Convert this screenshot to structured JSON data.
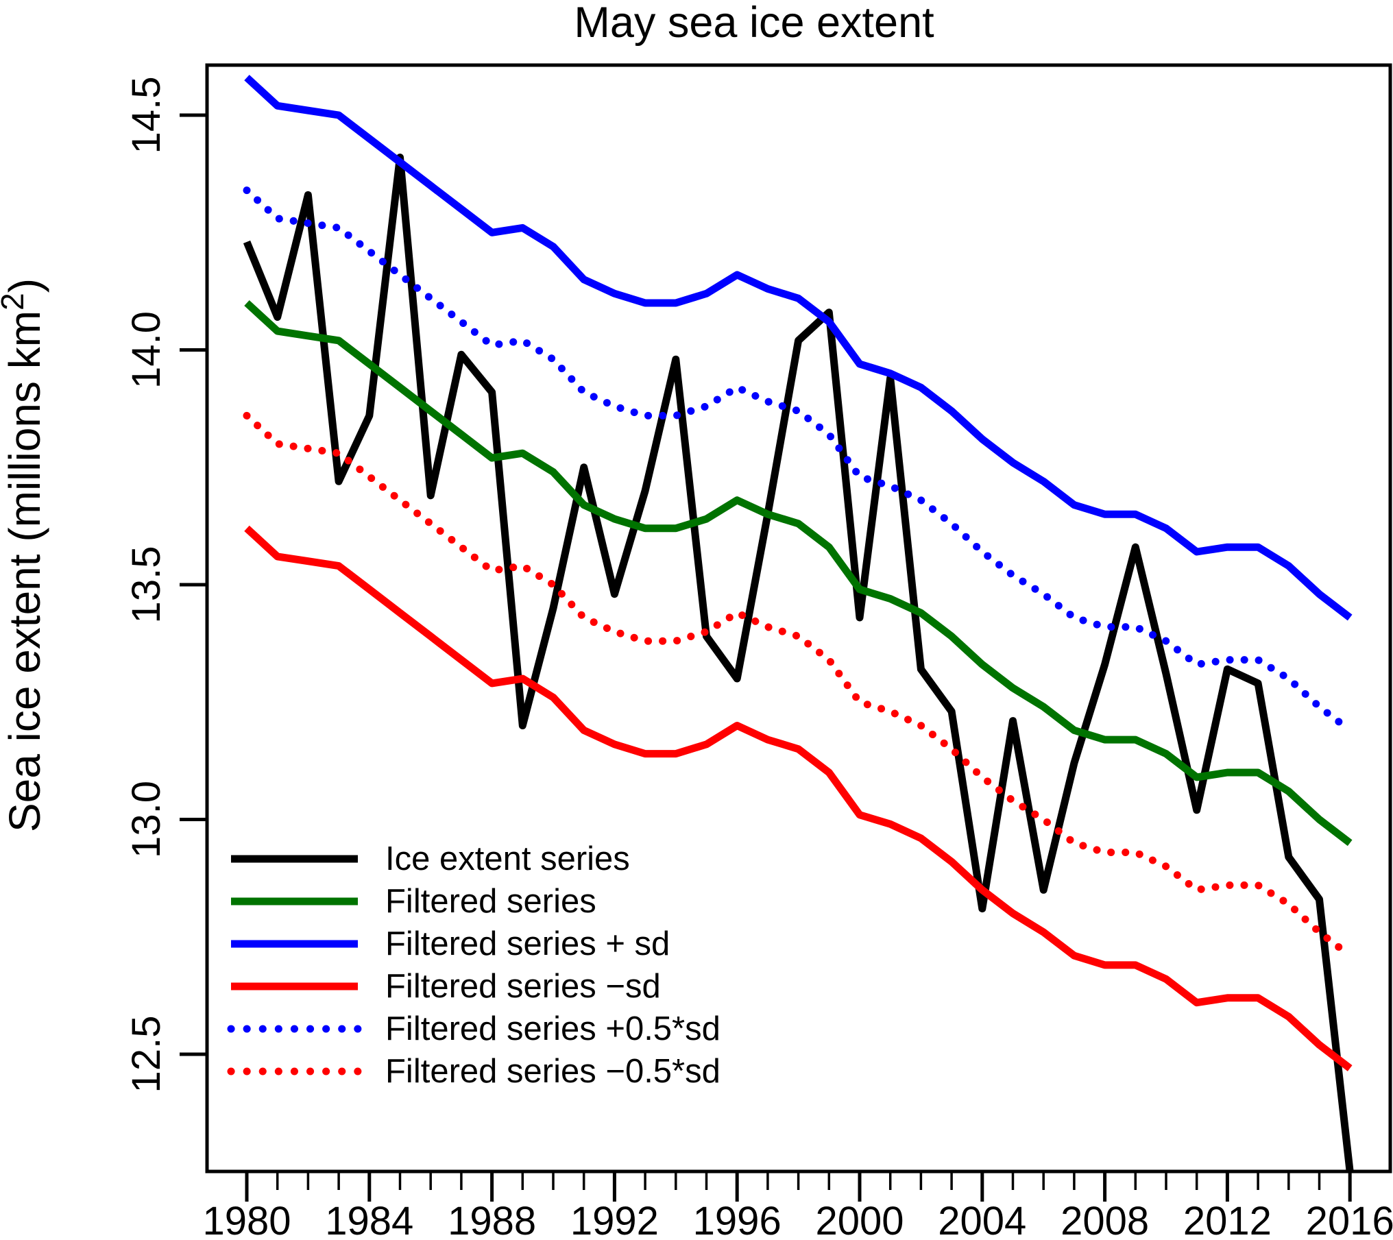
{
  "title": "May sea ice extent",
  "y_label": {
    "text": "Sea ice extent (millions km",
    "sup": "2",
    "suffix": ")"
  },
  "axes": {
    "y_ticks": [
      14.5,
      14.0,
      13.5,
      13.0,
      12.5
    ],
    "x_major_ticks": [
      1980,
      1984,
      1988,
      1992,
      1996,
      2000,
      2004,
      2008,
      2012,
      2016
    ],
    "x_minor_tick_interval": 1
  },
  "legend": [
    {
      "label": "Ice extent series",
      "series": "ice-extent"
    },
    {
      "label": "Filtered series",
      "series": "filtered"
    },
    {
      "label": "Filtered series + sd",
      "series": "filtered-plus-sd"
    },
    {
      "label": "Filtered series −sd",
      "series": "filtered-minus-sd"
    },
    {
      "label": "Filtered series +0.5*sd",
      "series": "filtered-plus-half-sd"
    },
    {
      "label": "Filtered series −0.5*sd",
      "series": "filtered-minus-half-sd"
    }
  ],
  "chart_data": {
    "type": "line",
    "title": "May sea ice extent",
    "xlabel": "",
    "ylabel": "Sea ice extent (millions km2)",
    "xlim": [
      1978.7,
      2017.3
    ],
    "ylim": [
      12.25,
      14.61
    ],
    "grid": false,
    "legend_position": "lower-left-inside",
    "sd": 0.48,
    "x": [
      1980,
      1981,
      1982,
      1983,
      1984,
      1985,
      1986,
      1987,
      1988,
      1989,
      1990,
      1991,
      1992,
      1993,
      1994,
      1995,
      1996,
      1997,
      1998,
      1999,
      2000,
      2001,
      2002,
      2003,
      2004,
      2005,
      2006,
      2007,
      2008,
      2009,
      2010,
      2011,
      2012,
      2013,
      2014,
      2015,
      2016
    ],
    "series": [
      {
        "name": "Ice extent series",
        "slug": "ice-extent",
        "color": "#000000",
        "style": "solid",
        "note": "2016 value clipped at plot bottom",
        "values": [
          14.23,
          14.07,
          14.33,
          13.72,
          13.86,
          14.41,
          13.69,
          13.99,
          13.91,
          13.2,
          13.45,
          13.75,
          13.48,
          13.7,
          13.98,
          13.39,
          13.3,
          13.65,
          14.02,
          14.08,
          13.43,
          13.94,
          13.32,
          13.23,
          12.81,
          13.21,
          12.85,
          13.12,
          13.33,
          13.58,
          13.31,
          13.02,
          13.32,
          13.29,
          12.92,
          12.83,
          12.25
        ]
      },
      {
        "name": "Filtered series",
        "slug": "filtered",
        "color": "#007300",
        "style": "solid",
        "values": [
          14.1,
          14.04,
          14.03,
          14.02,
          13.97,
          13.92,
          13.87,
          13.82,
          13.77,
          13.78,
          13.74,
          13.67,
          13.64,
          13.62,
          13.62,
          13.64,
          13.68,
          13.65,
          13.63,
          13.58,
          13.49,
          13.47,
          13.44,
          13.39,
          13.33,
          13.28,
          13.24,
          13.19,
          13.17,
          13.17,
          13.14,
          13.09,
          13.1,
          13.1,
          13.06,
          13.0,
          12.95
        ]
      },
      {
        "name": "Filtered series + sd",
        "slug": "filtered-plus-sd",
        "color": "#0000ff",
        "style": "solid",
        "values": [
          14.58,
          14.52,
          14.51,
          14.5,
          14.45,
          14.4,
          14.35,
          14.3,
          14.25,
          14.26,
          14.22,
          14.15,
          14.12,
          14.1,
          14.1,
          14.12,
          14.16,
          14.13,
          14.11,
          14.06,
          13.97,
          13.95,
          13.92,
          13.87,
          13.81,
          13.76,
          13.72,
          13.67,
          13.65,
          13.65,
          13.62,
          13.57,
          13.58,
          13.58,
          13.54,
          13.48,
          13.43
        ]
      },
      {
        "name": "Filtered series −sd",
        "slug": "filtered-minus-sd",
        "color": "#ff0000",
        "style": "solid",
        "values": [
          13.62,
          13.56,
          13.55,
          13.54,
          13.49,
          13.44,
          13.39,
          13.34,
          13.29,
          13.3,
          13.26,
          13.19,
          13.16,
          13.14,
          13.14,
          13.16,
          13.2,
          13.17,
          13.15,
          13.1,
          13.01,
          12.99,
          12.96,
          12.91,
          12.85,
          12.8,
          12.76,
          12.71,
          12.69,
          12.69,
          12.66,
          12.61,
          12.62,
          12.62,
          12.58,
          12.52,
          12.47
        ]
      },
      {
        "name": "Filtered series +0.5*sd",
        "slug": "filtered-plus-half-sd",
        "color": "#0000ff",
        "style": "dotted",
        "values": [
          14.34,
          14.28,
          14.27,
          14.26,
          14.21,
          14.16,
          14.11,
          14.06,
          14.01,
          14.02,
          13.98,
          13.91,
          13.88,
          13.86,
          13.86,
          13.88,
          13.92,
          13.89,
          13.87,
          13.82,
          13.73,
          13.71,
          13.68,
          13.63,
          13.57,
          13.52,
          13.48,
          13.43,
          13.41,
          13.41,
          13.38,
          13.33,
          13.34,
          13.34,
          13.3,
          13.24,
          13.19
        ]
      },
      {
        "name": "Filtered series −0.5*sd",
        "slug": "filtered-minus-half-sd",
        "color": "#ff0000",
        "style": "dotted",
        "values": [
          13.86,
          13.8,
          13.79,
          13.78,
          13.73,
          13.68,
          13.63,
          13.58,
          13.53,
          13.54,
          13.5,
          13.43,
          13.4,
          13.38,
          13.38,
          13.4,
          13.44,
          13.41,
          13.39,
          13.34,
          13.25,
          13.23,
          13.2,
          13.15,
          13.09,
          13.04,
          13.0,
          12.95,
          12.93,
          12.93,
          12.9,
          12.85,
          12.86,
          12.86,
          12.82,
          12.76,
          12.71
        ]
      }
    ]
  }
}
